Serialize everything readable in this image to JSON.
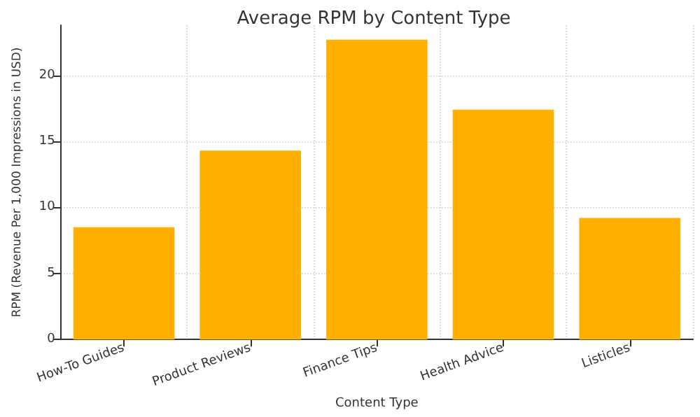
{
  "chart_data": {
    "type": "bar",
    "title": "Average RPM by Content Type",
    "xlabel": "Content Type",
    "ylabel": "RPM (Revenue Per 1,000 Impressions in USD)",
    "categories": [
      "How-To Guides",
      "Product Reviews",
      "Finance Tips",
      "Health Advice",
      "Listicles"
    ],
    "values": [
      8.5,
      14.3,
      22.7,
      17.4,
      9.2
    ],
    "color": "#ffb000",
    "ylim": [
      0,
      23.8
    ],
    "yticks": [
      0,
      5,
      10,
      15,
      20
    ],
    "grid": true
  }
}
